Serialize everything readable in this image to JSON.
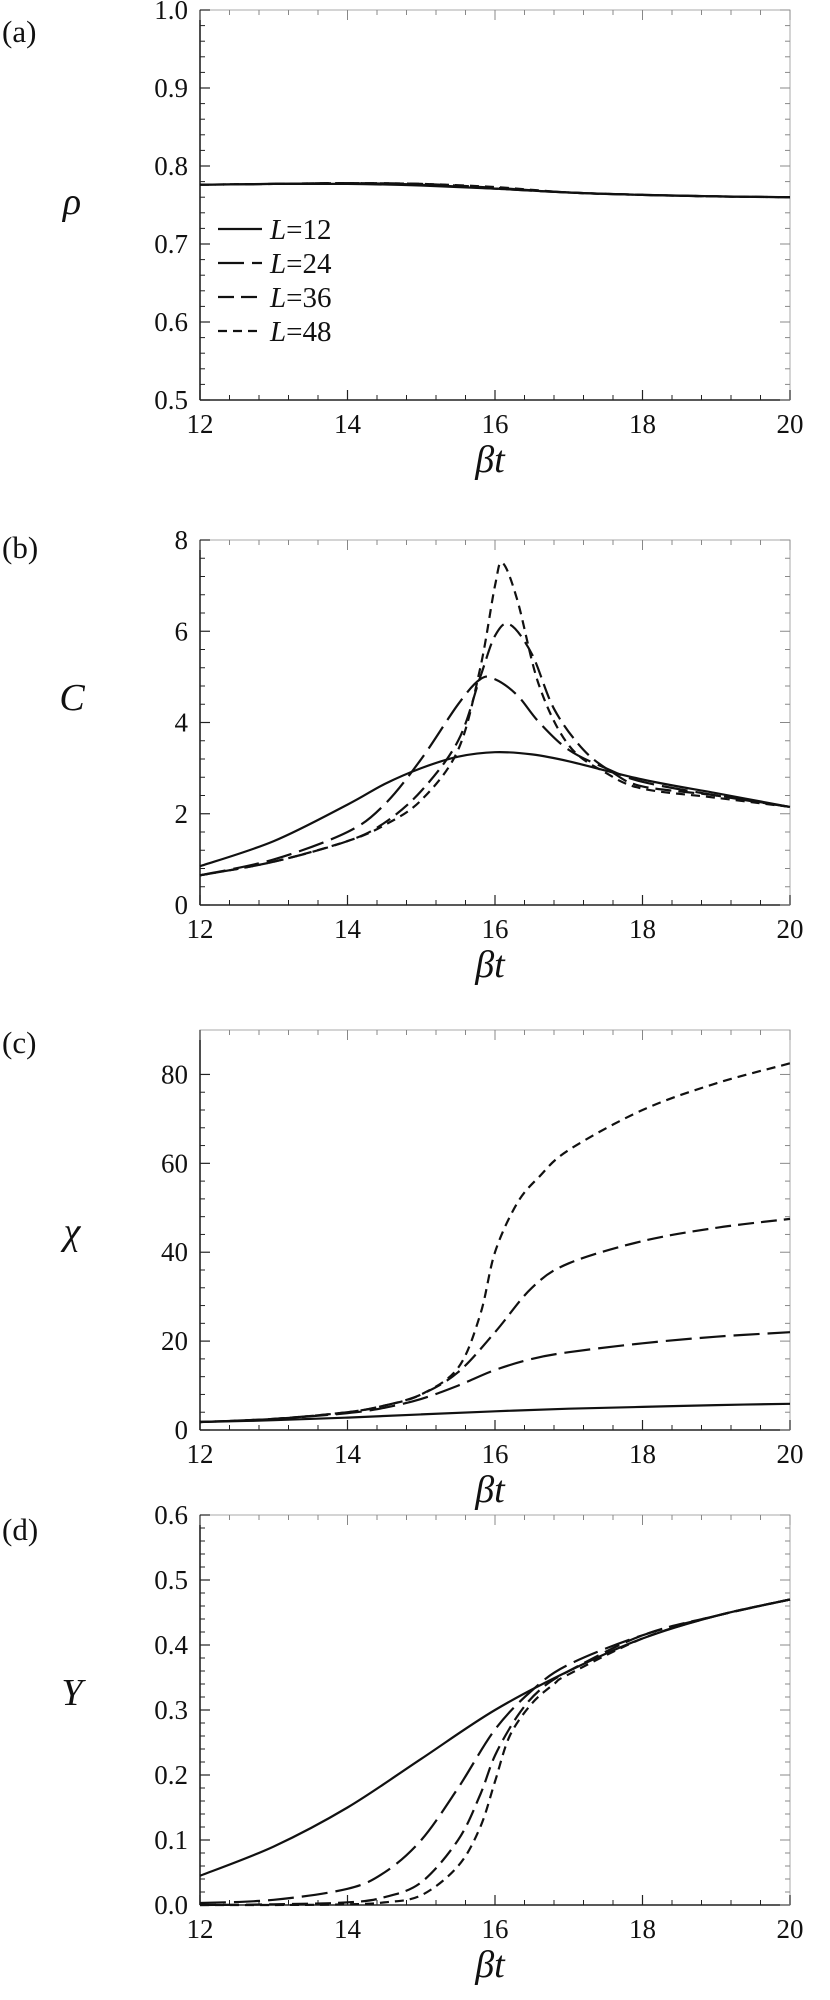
{
  "chart_data": [
    {
      "type": "line",
      "panel_label": "(a)",
      "xlabel": "βt",
      "ylabel": "ρ",
      "xlim": [
        12,
        20
      ],
      "ylim": [
        0.5,
        1.0
      ],
      "xticks": [
        "12",
        "14",
        "16",
        "18",
        "20"
      ],
      "yticks": [
        "0.5",
        "0.6",
        "0.7",
        "0.8",
        "0.9",
        "1.0"
      ],
      "legend": {
        "placement": "left",
        "entries": [
          {
            "prefix": "L",
            "rest": "=12"
          },
          {
            "prefix": "L",
            "rest": "=24"
          },
          {
            "prefix": "L",
            "rest": "=36"
          },
          {
            "prefix": "L",
            "rest": "=48"
          }
        ]
      },
      "series": [
        {
          "name": "L=12",
          "dash": "solid",
          "x": [
            12,
            13,
            14,
            15,
            16,
            17,
            18,
            19,
            20
          ],
          "y": [
            0.776,
            0.777,
            0.777,
            0.775,
            0.771,
            0.766,
            0.763,
            0.761,
            0.76
          ]
        },
        {
          "name": "L=24",
          "dash": "long",
          "x": [
            12,
            13,
            14,
            15,
            16,
            17,
            18,
            19,
            20
          ],
          "y": [
            0.776,
            0.777,
            0.778,
            0.776,
            0.771,
            0.766,
            0.763,
            0.761,
            0.76
          ]
        },
        {
          "name": "L=36",
          "dash": "medium",
          "x": [
            12,
            13,
            14,
            15,
            16,
            17,
            18,
            19,
            20
          ],
          "y": [
            0.776,
            0.777,
            0.778,
            0.777,
            0.772,
            0.766,
            0.763,
            0.761,
            0.76
          ]
        },
        {
          "name": "L=48",
          "dash": "short",
          "x": [
            12,
            13,
            14,
            15,
            16,
            17,
            18,
            19,
            20
          ],
          "y": [
            0.776,
            0.777,
            0.778,
            0.777,
            0.773,
            0.766,
            0.763,
            0.761,
            0.76
          ]
        }
      ]
    },
    {
      "type": "line",
      "panel_label": "(b)",
      "xlabel": "βt",
      "ylabel": "C",
      "xlim": [
        12,
        20
      ],
      "ylim": [
        0,
        8
      ],
      "xticks": [
        "12",
        "14",
        "16",
        "18",
        "20"
      ],
      "yticks": [
        "0",
        "2",
        "4",
        "6",
        "8"
      ],
      "series": [
        {
          "name": "L=12",
          "dash": "solid",
          "x": [
            12,
            13,
            14,
            14.5,
            15,
            15.5,
            16,
            16.5,
            17,
            18,
            19,
            20
          ],
          "y": [
            0.85,
            1.4,
            2.2,
            2.65,
            3.0,
            3.25,
            3.35,
            3.3,
            3.15,
            2.75,
            2.45,
            2.15
          ]
        },
        {
          "name": "L=24",
          "dash": "long",
          "x": [
            12,
            13,
            14,
            14.5,
            15,
            15.5,
            15.8,
            16,
            16.3,
            16.6,
            17,
            17.5,
            18,
            19,
            20
          ],
          "y": [
            0.65,
            1.0,
            1.6,
            2.2,
            3.2,
            4.4,
            4.95,
            4.95,
            4.6,
            4.0,
            3.4,
            3.0,
            2.7,
            2.4,
            2.15
          ]
        },
        {
          "name": "L=36",
          "dash": "medium",
          "x": [
            12,
            13,
            14,
            14.5,
            15,
            15.5,
            15.8,
            16,
            16.2,
            16.5,
            16.8,
            17.2,
            17.6,
            18,
            19,
            20
          ],
          "y": [
            0.65,
            0.95,
            1.4,
            1.8,
            2.5,
            3.6,
            5.0,
            5.9,
            6.15,
            5.5,
            4.3,
            3.4,
            2.9,
            2.6,
            2.4,
            2.15
          ]
        },
        {
          "name": "L=48",
          "dash": "short",
          "x": [
            12,
            13,
            14,
            14.5,
            15,
            15.5,
            15.8,
            16,
            16.1,
            16.3,
            16.6,
            17,
            17.5,
            18,
            19,
            20
          ],
          "y": [
            0.65,
            0.95,
            1.4,
            1.75,
            2.3,
            3.4,
            5.2,
            7.0,
            7.5,
            6.7,
            4.8,
            3.5,
            2.9,
            2.55,
            2.35,
            2.15
          ]
        }
      ]
    },
    {
      "type": "line",
      "panel_label": "(c)",
      "xlabel": "βt",
      "ylabel": "χ",
      "xlim": [
        12,
        20
      ],
      "ylim": [
        0,
        90
      ],
      "xticks": [
        "12",
        "14",
        "16",
        "18",
        "20"
      ],
      "yticks": [
        "0",
        "20",
        "40",
        "60",
        "80"
      ],
      "series": [
        {
          "name": "L=12",
          "dash": "solid",
          "x": [
            12,
            13,
            14,
            15,
            16,
            17,
            18,
            19,
            20
          ],
          "y": [
            1.8,
            2.2,
            2.8,
            3.5,
            4.2,
            4.8,
            5.2,
            5.6,
            5.9
          ]
        },
        {
          "name": "L=24",
          "dash": "long",
          "x": [
            12,
            13,
            14,
            14.5,
            15,
            15.5,
            16,
            16.5,
            17,
            18,
            19,
            20
          ],
          "y": [
            1.8,
            2.5,
            3.8,
            5.0,
            7.0,
            10.0,
            13.5,
            16.0,
            17.5,
            19.5,
            21.0,
            22.0
          ]
        },
        {
          "name": "L=36",
          "dash": "medium",
          "x": [
            12,
            13,
            14,
            14.5,
            15,
            15.5,
            16,
            16.5,
            17,
            18,
            19,
            20
          ],
          "y": [
            1.8,
            2.5,
            4.0,
            5.5,
            8.0,
            13.0,
            22.0,
            32.0,
            37.5,
            42.5,
            45.5,
            47.5
          ]
        },
        {
          "name": "L=48",
          "dash": "short",
          "x": [
            12,
            13,
            14,
            14.5,
            15,
            15.5,
            15.8,
            16,
            16.3,
            16.6,
            17,
            18,
            19,
            20
          ],
          "y": [
            1.8,
            2.5,
            4.0,
            5.5,
            8.0,
            14.0,
            26.0,
            40.0,
            51.0,
            57.0,
            63.0,
            72.0,
            78.0,
            82.5
          ]
        }
      ]
    },
    {
      "type": "line",
      "panel_label": "(d)",
      "xlabel": "βt",
      "ylabel": "Y",
      "xlim": [
        12,
        20
      ],
      "ylim": [
        0,
        0.6
      ],
      "xticks": [
        "12",
        "14",
        "16",
        "18",
        "20"
      ],
      "yticks": [
        "0.0",
        "0.1",
        "0.2",
        "0.3",
        "0.4",
        "0.5",
        "0.6"
      ],
      "series": [
        {
          "name": "L=12",
          "dash": "solid",
          "x": [
            12,
            13,
            14,
            15,
            16,
            17,
            18,
            19,
            20
          ],
          "y": [
            0.045,
            0.09,
            0.15,
            0.225,
            0.3,
            0.36,
            0.41,
            0.445,
            0.47
          ]
        },
        {
          "name": "L=24",
          "dash": "long",
          "x": [
            12,
            13,
            14,
            14.5,
            15,
            15.5,
            16,
            16.5,
            17,
            18,
            19,
            20
          ],
          "y": [
            0.003,
            0.008,
            0.025,
            0.05,
            0.1,
            0.18,
            0.27,
            0.33,
            0.37,
            0.415,
            0.445,
            0.47
          ]
        },
        {
          "name": "L=36",
          "dash": "medium",
          "x": [
            12,
            13,
            14,
            14.5,
            15,
            15.5,
            15.8,
            16,
            16.3,
            16.6,
            17,
            18,
            19,
            20
          ],
          "y": [
            0.0,
            0.001,
            0.004,
            0.012,
            0.035,
            0.1,
            0.17,
            0.23,
            0.29,
            0.33,
            0.36,
            0.415,
            0.445,
            0.47
          ]
        },
        {
          "name": "L=48",
          "dash": "short",
          "x": [
            12,
            13,
            14,
            14.5,
            15,
            15.5,
            15.8,
            16,
            16.2,
            16.5,
            16.8,
            17,
            18,
            19,
            20
          ],
          "y": [
            0.0,
            0.0,
            0.001,
            0.004,
            0.015,
            0.06,
            0.12,
            0.19,
            0.26,
            0.31,
            0.34,
            0.355,
            0.41,
            0.445,
            0.47
          ]
        }
      ]
    }
  ]
}
